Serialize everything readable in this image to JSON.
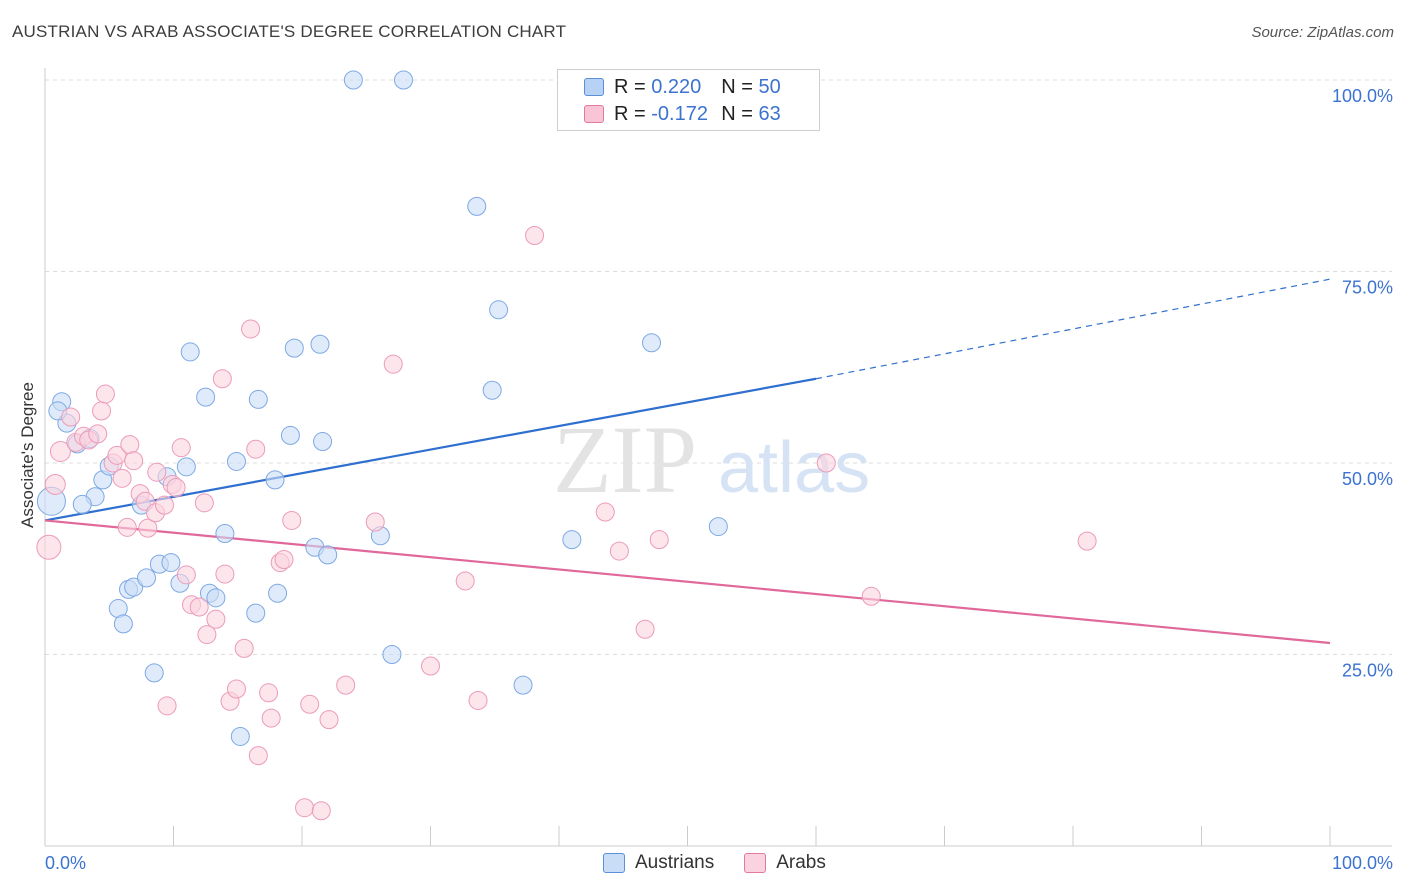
{
  "title": "AUSTRIAN VS ARAB ASSOCIATE'S DEGREE CORRELATION CHART",
  "source": "Source: ZipAtlas.com",
  "watermark": {
    "zip": "ZIP",
    "atlas": "atlas"
  },
  "legend": {
    "rows": [
      {
        "r_label": "R =",
        "r_value": "0.220",
        "n_label": "N =",
        "n_value": "50",
        "color": "#b7d2f5",
        "stroke": "#5b8fd8"
      },
      {
        "r_label": "R =",
        "r_value": "-0.172",
        "n_label": "N =",
        "n_value": "63",
        "color": "#f9c4d6",
        "stroke": "#e27aa0"
      }
    ],
    "bottom": [
      {
        "label": "Austrians",
        "color": "#b7d2f5",
        "stroke": "#5b8fd8"
      },
      {
        "label": "Arabs",
        "color": "#f9c4d6",
        "stroke": "#e27aa0"
      }
    ]
  },
  "chart_data": {
    "type": "scatter",
    "title": "AUSTRIAN VS ARAB ASSOCIATE'S DEGREE CORRELATION CHART",
    "xlabel": "",
    "ylabel": "Associate's Degree",
    "xlim": [
      0,
      100
    ],
    "ylim": [
      0,
      100
    ],
    "x_tick_labels": [
      "0.0%",
      "100.0%"
    ],
    "y_tick_labels": [
      "25.0%",
      "50.0%",
      "75.0%",
      "100.0%"
    ],
    "y_ticks": [
      25,
      50,
      75,
      100
    ],
    "grid": true,
    "series": [
      {
        "name": "Austrians",
        "fill": "#c9ddf7",
        "stroke": "#7ea9e3",
        "line_color": "#2f6fcf",
        "trend": {
          "x0": 0,
          "y0": 42.5,
          "x1": 60,
          "y1": 61.0,
          "dash_x1": 100,
          "dash_y1": 74.0
        },
        "points": [
          [
            0.5,
            45.0,
            14
          ],
          [
            1.3,
            58.0,
            9
          ],
          [
            1.7,
            55.2,
            9
          ],
          [
            1.0,
            56.8,
            9
          ],
          [
            2.5,
            52.5,
            9
          ],
          [
            3.5,
            53.2,
            9
          ],
          [
            3.9,
            45.6,
            9
          ],
          [
            2.9,
            44.6,
            9
          ],
          [
            4.5,
            47.8,
            9
          ],
          [
            5.0,
            49.6,
            9
          ],
          [
            5.7,
            31.0,
            9
          ],
          [
            6.1,
            29.0,
            9
          ],
          [
            6.5,
            33.5,
            9
          ],
          [
            6.9,
            33.8,
            9
          ],
          [
            7.5,
            44.5,
            9
          ],
          [
            7.9,
            35.0,
            9
          ],
          [
            8.5,
            22.6,
            9
          ],
          [
            8.9,
            36.8,
            9
          ],
          [
            9.5,
            48.2,
            9
          ],
          [
            9.8,
            37.0,
            9
          ],
          [
            10.5,
            34.3,
            9
          ],
          [
            11.0,
            49.5,
            9
          ],
          [
            11.3,
            64.5,
            9
          ],
          [
            12.5,
            58.6,
            9
          ],
          [
            12.8,
            33.0,
            9
          ],
          [
            13.3,
            32.4,
            9
          ],
          [
            14.0,
            40.8,
            9
          ],
          [
            14.9,
            50.2,
            9
          ],
          [
            15.2,
            14.3,
            9
          ],
          [
            16.4,
            30.4,
            9
          ],
          [
            16.6,
            58.3,
            9
          ],
          [
            17.9,
            47.8,
            9
          ],
          [
            18.1,
            33.0,
            9
          ],
          [
            19.1,
            53.6,
            9
          ],
          [
            19.4,
            65.0,
            9
          ],
          [
            21.0,
            39.0,
            9
          ],
          [
            21.4,
            65.5,
            9
          ],
          [
            21.6,
            52.8,
            9
          ],
          [
            22.0,
            38.0,
            9
          ],
          [
            24.0,
            100.0,
            9
          ],
          [
            26.1,
            40.5,
            9
          ],
          [
            27.0,
            25.0,
            9
          ],
          [
            27.9,
            100.0,
            9
          ],
          [
            33.6,
            83.5,
            9
          ],
          [
            34.8,
            59.5,
            9
          ],
          [
            35.3,
            70.0,
            9
          ],
          [
            37.2,
            21.0,
            9
          ],
          [
            41.0,
            40.0,
            9
          ],
          [
            47.2,
            65.7,
            9
          ],
          [
            52.4,
            41.7,
            9
          ]
        ]
      },
      {
        "name": "Arabs",
        "fill": "#fbd3e0",
        "stroke": "#eb9bb9",
        "line_color": "#e0689a",
        "trend": {
          "x0": 0,
          "y0": 42.5,
          "x1": 100,
          "y1": 26.5
        },
        "points": [
          [
            0.3,
            39.0,
            12
          ],
          [
            0.8,
            47.2,
            10
          ],
          [
            1.2,
            51.5,
            10
          ],
          [
            2.0,
            56.0,
            9
          ],
          [
            2.4,
            52.7,
            9
          ],
          [
            3.0,
            53.5,
            9
          ],
          [
            3.4,
            53.0,
            9
          ],
          [
            4.1,
            53.8,
            9
          ],
          [
            4.4,
            56.8,
            9
          ],
          [
            4.7,
            59.0,
            9
          ],
          [
            5.3,
            50.0,
            9
          ],
          [
            5.6,
            51.0,
            9
          ],
          [
            6.0,
            48.0,
            9
          ],
          [
            6.4,
            41.6,
            9
          ],
          [
            6.6,
            52.4,
            9
          ],
          [
            6.9,
            50.3,
            9
          ],
          [
            7.4,
            46.0,
            9
          ],
          [
            7.8,
            45.0,
            9
          ],
          [
            8.0,
            41.5,
            9
          ],
          [
            8.6,
            43.5,
            9
          ],
          [
            8.7,
            48.8,
            9
          ],
          [
            9.3,
            44.5,
            9
          ],
          [
            9.5,
            18.3,
            9
          ],
          [
            9.9,
            47.2,
            9
          ],
          [
            10.2,
            46.8,
            9
          ],
          [
            10.6,
            52.0,
            9
          ],
          [
            11.0,
            35.4,
            9
          ],
          [
            11.4,
            31.5,
            9
          ],
          [
            12.0,
            31.2,
            9
          ],
          [
            12.4,
            44.8,
            9
          ],
          [
            12.6,
            27.6,
            9
          ],
          [
            13.3,
            29.6,
            9
          ],
          [
            13.8,
            61.0,
            9
          ],
          [
            14.0,
            35.5,
            9
          ],
          [
            14.4,
            18.9,
            9
          ],
          [
            14.9,
            20.5,
            9
          ],
          [
            15.5,
            25.8,
            9
          ],
          [
            16.0,
            67.5,
            9
          ],
          [
            16.4,
            51.8,
            9
          ],
          [
            16.6,
            11.8,
            9
          ],
          [
            17.4,
            20.0,
            9
          ],
          [
            17.6,
            16.7,
            9
          ],
          [
            18.3,
            37.0,
            9
          ],
          [
            18.6,
            37.4,
            9
          ],
          [
            19.2,
            42.5,
            9
          ],
          [
            20.2,
            5.0,
            9
          ],
          [
            20.6,
            18.5,
            9
          ],
          [
            21.5,
            4.6,
            9
          ],
          [
            22.1,
            16.5,
            9
          ],
          [
            23.4,
            21.0,
            9
          ],
          [
            25.7,
            42.3,
            9
          ],
          [
            27.1,
            62.9,
            9
          ],
          [
            30.0,
            23.5,
            9
          ],
          [
            32.7,
            34.6,
            9
          ],
          [
            33.7,
            19.0,
            9
          ],
          [
            38.1,
            79.7,
            9
          ],
          [
            43.6,
            43.6,
            9
          ],
          [
            44.7,
            38.5,
            9
          ],
          [
            46.7,
            28.3,
            9
          ],
          [
            47.8,
            40.0,
            9
          ],
          [
            60.8,
            50.0,
            9
          ],
          [
            64.3,
            32.6,
            9
          ],
          [
            81.1,
            39.8,
            9
          ]
        ]
      }
    ]
  }
}
